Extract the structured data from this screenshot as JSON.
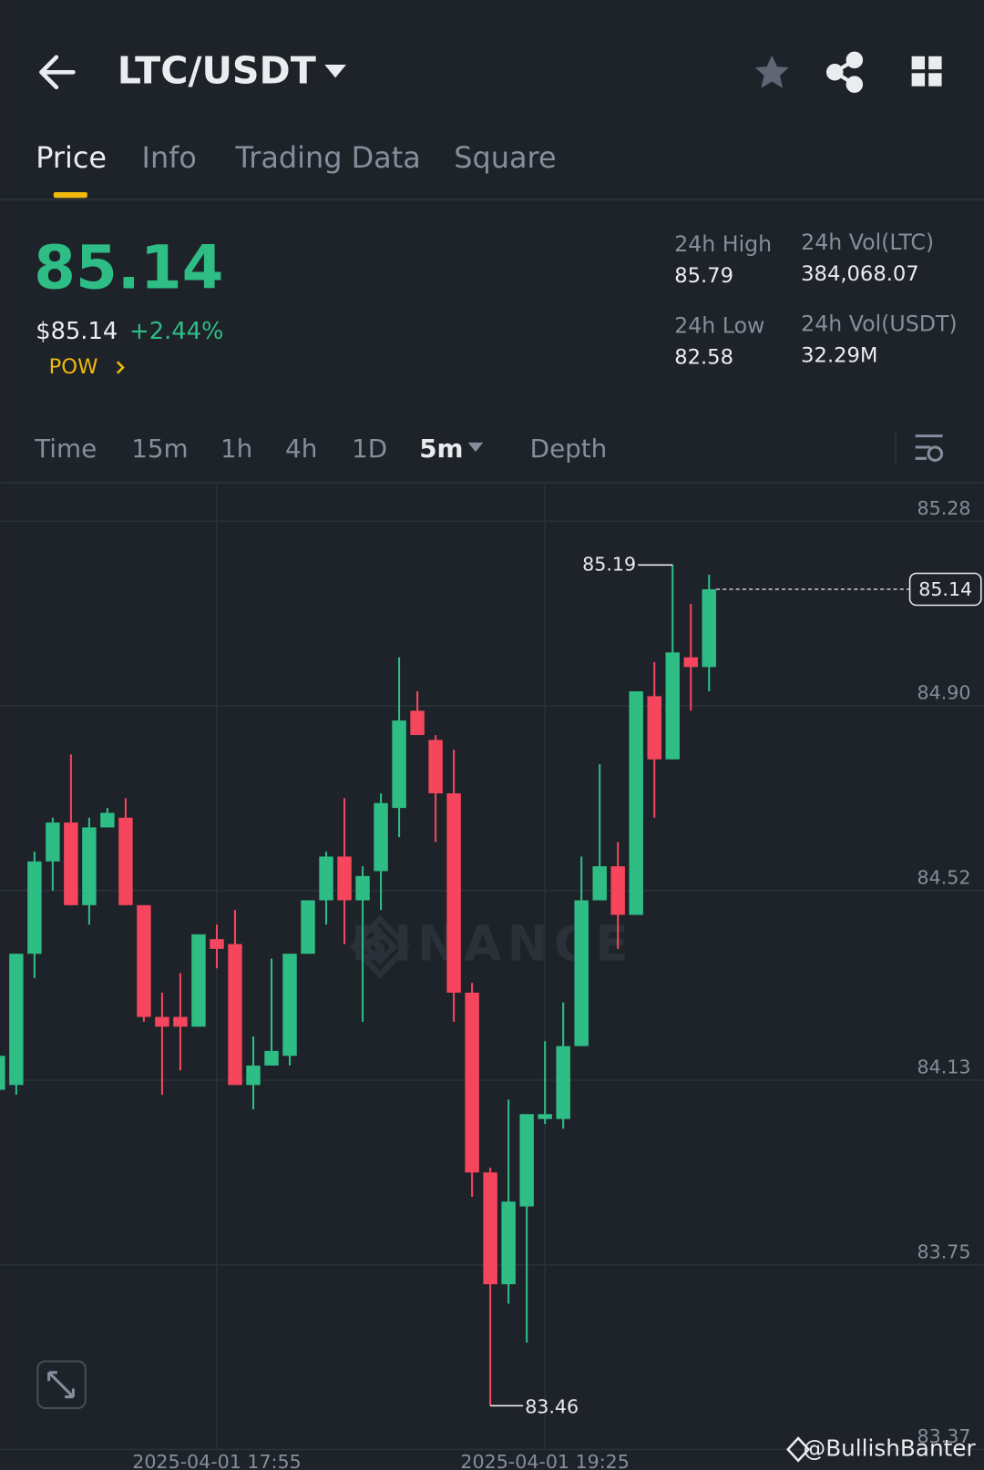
{
  "header": {
    "title": "LTC/USDT"
  },
  "tabs": [
    "Price",
    "Info",
    "Trading Data",
    "Square"
  ],
  "price": {
    "last": "85.14",
    "fiat": "$85.14",
    "change": "+2.44%",
    "tag": "POW"
  },
  "stats": [
    {
      "label": "24h High",
      "value": "85.79"
    },
    {
      "label": "24h Low",
      "value": "82.58"
    },
    {
      "label": "24h Vol(LTC)",
      "value": "384,068.07"
    },
    {
      "label": "24h Vol(USDT)",
      "value": "32.29M"
    }
  ],
  "intervals": [
    "Time",
    "15m",
    "1h",
    "4h",
    "1D",
    "5m",
    "Depth"
  ],
  "watermark": "@BullishBanter",
  "chart_data": {
    "type": "candlestick",
    "watermark": "BINANCE",
    "categories": [
      null,
      null,
      null,
      null,
      null,
      null,
      null,
      null,
      null,
      null,
      null,
      null,
      "2025-04-01 17:55",
      null,
      null,
      null,
      null,
      null,
      null,
      null,
      null,
      null,
      null,
      null,
      null,
      null,
      null,
      null,
      null,
      null,
      "2025-04-01 19:25",
      null,
      null,
      null,
      null,
      null,
      null,
      null,
      null,
      null
    ],
    "open": [
      84.11,
      84.12,
      84.39,
      84.58,
      84.66,
      84.49,
      84.65,
      84.67,
      84.49,
      84.26,
      84.26,
      84.24,
      84.42,
      84.41,
      84.12,
      84.16,
      84.18,
      84.39,
      84.5,
      84.59,
      84.5,
      84.56,
      84.69,
      84.89,
      84.83,
      84.72,
      84.31,
      83.94,
      83.71,
      83.87,
      84.05,
      84.05,
      84.2,
      84.5,
      84.57,
      84.47,
      84.92,
      84.79,
      85.0,
      84.98
    ],
    "high": [
      84.19,
      84.39,
      84.6,
      84.67,
      84.8,
      84.67,
      84.69,
      84.71,
      84.49,
      84.31,
      84.35,
      84.43,
      84.45,
      84.48,
      84.22,
      84.38,
      84.39,
      84.5,
      84.6,
      84.71,
      84.57,
      84.72,
      85.0,
      84.93,
      84.84,
      84.81,
      84.33,
      83.95,
      84.09,
      84.06,
      84.21,
      84.29,
      84.59,
      84.78,
      84.62,
      84.93,
      84.99,
      85.19,
      85.11,
      85.17
    ],
    "low": [
      84.07,
      84.1,
      84.34,
      84.52,
      84.49,
      84.45,
      84.65,
      84.49,
      84.25,
      84.1,
      84.15,
      84.24,
      84.36,
      84.12,
      84.07,
      84.16,
      84.16,
      84.39,
      84.45,
      84.41,
      84.25,
      84.48,
      84.63,
      84.84,
      84.62,
      84.25,
      83.89,
      83.46,
      83.67,
      83.59,
      84.04,
      84.03,
      84.2,
      84.5,
      84.4,
      84.47,
      84.67,
      84.79,
      84.89,
      84.93
    ],
    "close": [
      84.18,
      84.39,
      84.58,
      84.66,
      84.49,
      84.65,
      84.68,
      84.49,
      84.26,
      84.24,
      84.24,
      84.43,
      84.4,
      84.12,
      84.16,
      84.19,
      84.39,
      84.5,
      84.59,
      84.5,
      84.55,
      84.7,
      84.87,
      84.84,
      84.72,
      84.31,
      83.94,
      83.71,
      83.88,
      84.06,
      84.06,
      84.2,
      84.5,
      84.57,
      84.47,
      84.93,
      84.79,
      85.01,
      84.98,
      85.14
    ],
    "up_color": "#2ebd85",
    "down_color": "#f6465d",
    "ylim": [
      83.37,
      85.36
    ],
    "yticks": [
      85.28,
      {
        "value": 84.9,
        "label": "84.90"
      },
      84.52,
      84.13,
      83.75,
      83.37
    ],
    "grid": true,
    "annotations": {
      "high": "85.19",
      "low": "83.46",
      "last": "85.14"
    }
  }
}
